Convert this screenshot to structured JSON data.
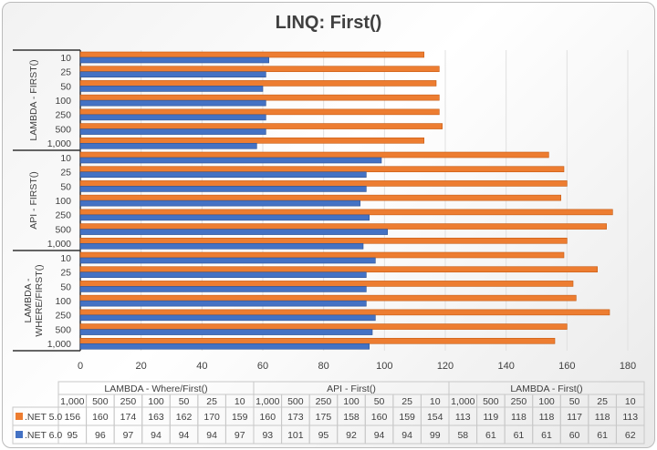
{
  "chart_data": {
    "type": "bar",
    "orientation": "horizontal",
    "title": "LINQ: First()",
    "xlim": [
      0,
      180
    ],
    "x_ticks": [
      0,
      20,
      40,
      60,
      80,
      100,
      120,
      140,
      160,
      180
    ],
    "grid": true,
    "legend": "data-table",
    "groups": [
      {
        "name": "LAMBDA - Where/First()",
        "axis_label": "LAMBDA - WHERE/FIRST()",
        "categories": [
          "1,000",
          "500",
          "250",
          "100",
          "50",
          "25",
          "10"
        ],
        "series": [
          {
            "name": ".NET 5.0",
            "values": [
              156,
              160,
              174,
              163,
              162,
              170,
              159
            ]
          },
          {
            "name": ".NET 6.0",
            "values": [
              95,
              96,
              97,
              94,
              94,
              94,
              97
            ]
          }
        ]
      },
      {
        "name": "API - First()",
        "axis_label": "API - FIRST()",
        "categories": [
          "1,000",
          "500",
          "250",
          "100",
          "50",
          "25",
          "10"
        ],
        "series": [
          {
            "name": ".NET 5.0",
            "values": [
              160,
              173,
              175,
              158,
              160,
              159,
              154
            ]
          },
          {
            "name": ".NET 6.0",
            "values": [
              93,
              101,
              95,
              92,
              94,
              94,
              99
            ]
          }
        ]
      },
      {
        "name": "LAMBDA - First()",
        "axis_label": "LAMBDA - FIRST()",
        "categories": [
          "1,000",
          "500",
          "250",
          "100",
          "50",
          "25",
          "10"
        ],
        "series": [
          {
            "name": ".NET 5.0",
            "values": [
              113,
              119,
              118,
              118,
              117,
              118,
              113
            ]
          },
          {
            "name": ".NET 6.0",
            "values": [
              58,
              61,
              61,
              61,
              60,
              61,
              62
            ]
          }
        ]
      }
    ],
    "colors": {
      ".NET 5.0": "#ED7D31",
      ".NET 6.0": "#4472C4"
    }
  }
}
